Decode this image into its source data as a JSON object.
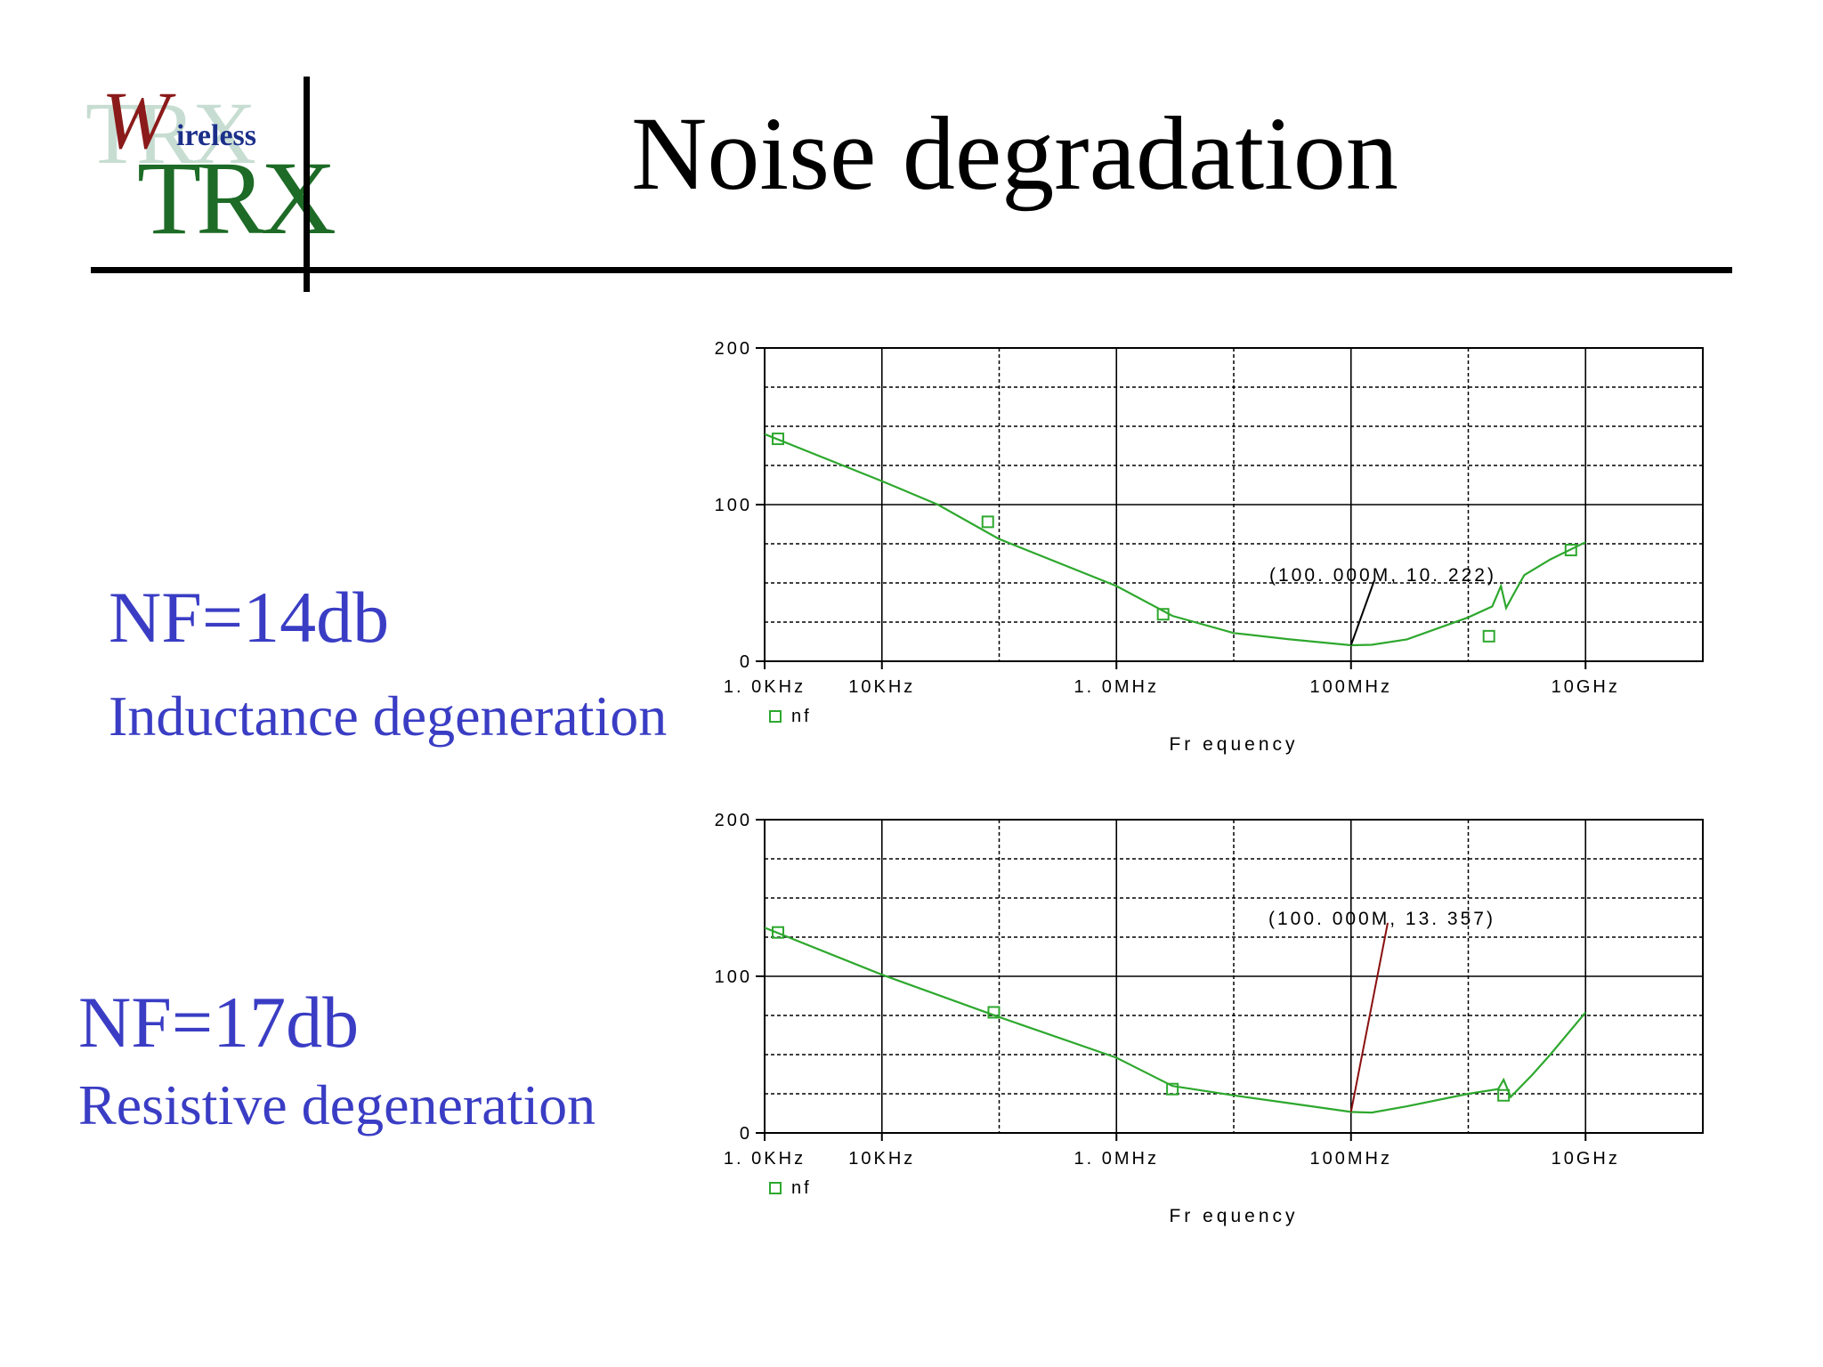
{
  "slide": {
    "title": "Noise degradation",
    "logo": {
      "letter": "W",
      "word": "ireless",
      "brand": "TRX"
    }
  },
  "left_labels": [
    {
      "nf": "NF=14db",
      "desc": "Inductance degeneration"
    },
    {
      "nf": "NF=17db",
      "desc": "Resistive degeneration"
    }
  ],
  "colors": {
    "text_blue": "#3a3dc4",
    "trace_green": "#2ea82e",
    "marker_line_top": "#000000",
    "marker_line_bottom": "#8b1010"
  },
  "chart_data": [
    {
      "type": "line",
      "x_scale": "log",
      "xlabel": "Fr equency",
      "x_ticks": [
        {
          "value": 1000,
          "label": "1. 0KHz"
        },
        {
          "value": 10000,
          "label": "10KHz"
        },
        {
          "value": 1000000,
          "label": "1. 0MHz"
        },
        {
          "value": 100000000,
          "label": "100MHz"
        },
        {
          "value": 10000000000,
          "label": "10GHz"
        }
      ],
      "y_ticks": [
        0,
        100,
        200
      ],
      "ylim": [
        0,
        200
      ],
      "legend": "nf",
      "series": [
        {
          "name": "nf",
          "points": [
            [
              1000,
              145
            ],
            [
              10000,
              115
            ],
            [
              30000,
              100
            ],
            [
              100000,
              78
            ],
            [
              1000000,
              48
            ],
            [
              3000000,
              29
            ],
            [
              10000000,
              18
            ],
            [
              30000000,
              14
            ],
            [
              100000000,
              10.2
            ],
            [
              150000000,
              10.5
            ],
            [
              300000000,
              14
            ],
            [
              1000000000,
              28
            ],
            [
              1600000000,
              35
            ],
            [
              1900000000,
              48
            ],
            [
              2100000000,
              34
            ],
            [
              2400000000,
              42
            ],
            [
              3000000000,
              55
            ],
            [
              5000000000,
              65
            ],
            [
              10000000000,
              76
            ]
          ],
          "markers": [
            [
              1300,
              142
            ],
            [
              80000,
              89
            ],
            [
              2500000,
              30
            ],
            [
              1500000000,
              16
            ],
            [
              7500000000,
              71
            ]
          ]
        }
      ],
      "annotation": {
        "text": "(100. 000M, 10. 222)",
        "x": 100000000,
        "y": 10.222
      }
    },
    {
      "type": "line",
      "x_scale": "log",
      "xlabel": "Fr equency",
      "x_ticks": [
        {
          "value": 1000,
          "label": "1. 0KHz"
        },
        {
          "value": 10000,
          "label": "10KHz"
        },
        {
          "value": 1000000,
          "label": "1. 0MHz"
        },
        {
          "value": 100000000,
          "label": "100MHz"
        },
        {
          "value": 10000000000,
          "label": "10GHz"
        }
      ],
      "y_ticks": [
        0,
        100,
        200
      ],
      "ylim": [
        0,
        200
      ],
      "legend": "nf",
      "series": [
        {
          "name": "nf",
          "points": [
            [
              1000,
              131
            ],
            [
              10000,
              101
            ],
            [
              100000,
              74
            ],
            [
              1000000,
              48
            ],
            [
              3000000,
              30
            ],
            [
              10000000,
              24
            ],
            [
              30000000,
              19
            ],
            [
              100000000,
              13.4
            ],
            [
              150000000,
              13
            ],
            [
              300000000,
              17
            ],
            [
              1000000000,
              25
            ],
            [
              1800000000,
              28
            ],
            [
              2000000000,
              34
            ],
            [
              2300000000,
              23
            ],
            [
              3500000000,
              37
            ],
            [
              5000000000,
              50
            ],
            [
              10000000000,
              77
            ]
          ],
          "markers": [
            [
              1300,
              128
            ],
            [
              90000,
              77
            ],
            [
              3000000,
              28
            ],
            [
              2000000000,
              24
            ]
          ]
        }
      ],
      "annotation": {
        "text": "(100. 000M, 13. 357)",
        "x": 100000000,
        "y": 13.357
      }
    }
  ]
}
